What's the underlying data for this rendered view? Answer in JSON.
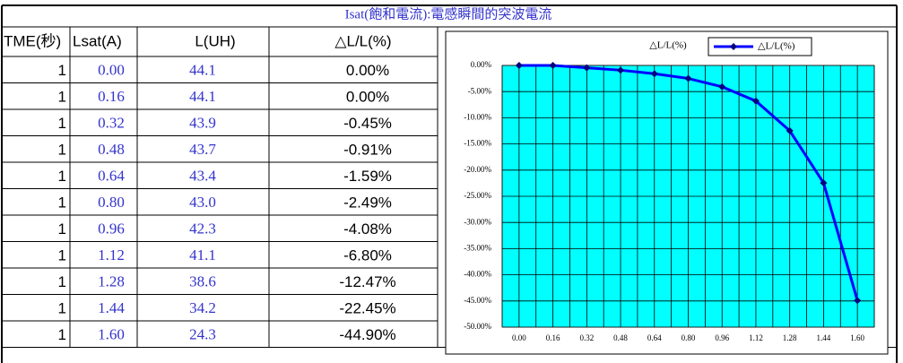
{
  "title": "Isat(飽和電流):電感瞬間的突波電流",
  "table": {
    "header": [
      "TME(秒)",
      "Lsat(A)",
      "L(UH)",
      "△L/L(%)"
    ],
    "rows": [
      [
        "1",
        "0.00",
        "44.1",
        "0.00%"
      ],
      [
        "1",
        "0.16",
        "44.1",
        "0.00%"
      ],
      [
        "1",
        "0.32",
        "43.9",
        "-0.45%"
      ],
      [
        "1",
        "0.48",
        "43.7",
        "-0.91%"
      ],
      [
        "1",
        "0.64",
        "43.4",
        "-1.59%"
      ],
      [
        "1",
        "0.80",
        "43.0",
        "-2.49%"
      ],
      [
        "1",
        "0.96",
        "42.3",
        "-4.08%"
      ],
      [
        "1",
        "1.12",
        "41.1",
        "-6.80%"
      ],
      [
        "1",
        "1.28",
        "38.6",
        "-12.47%"
      ],
      [
        "1",
        "1.44",
        "34.2",
        "-22.45%"
      ],
      [
        "1",
        "1.60",
        "24.3",
        "-44.90%"
      ]
    ]
  },
  "chart_data": {
    "type": "line",
    "title": "△L/L(%)",
    "categories": [
      "0.00",
      "0.16",
      "0.32",
      "0.48",
      "0.64",
      "0.80",
      "0.96",
      "1.12",
      "1.28",
      "1.44",
      "1.60"
    ],
    "series": [
      {
        "name": "△L/L(%)",
        "color": "#0000ff",
        "values": [
          0,
          0,
          -0.45,
          -0.91,
          -1.59,
          -2.49,
          -4.08,
          -6.8,
          -12.47,
          -22.45,
          -44.9
        ]
      }
    ],
    "ylim": [
      -50,
      0
    ],
    "yticks": [
      {
        "value": 0,
        "label": "0.00%"
      },
      {
        "value": -5,
        "label": "-5.00%"
      },
      {
        "value": -10,
        "label": "-10.00%"
      },
      {
        "value": -15,
        "label": "-15.00%"
      },
      {
        "value": -20,
        "label": "-20.00%"
      },
      {
        "value": -25,
        "label": "-25.00%"
      },
      {
        "value": -30,
        "label": "-30.00%"
      },
      {
        "value": -35,
        "label": "-35.00%"
      },
      {
        "value": -40,
        "label": "-40.00%"
      },
      {
        "value": -45,
        "label": "-45.00%"
      },
      {
        "value": -50,
        "label": "-50.00%"
      }
    ],
    "grid": true,
    "background": "#00ffff",
    "legend": "top-right"
  }
}
